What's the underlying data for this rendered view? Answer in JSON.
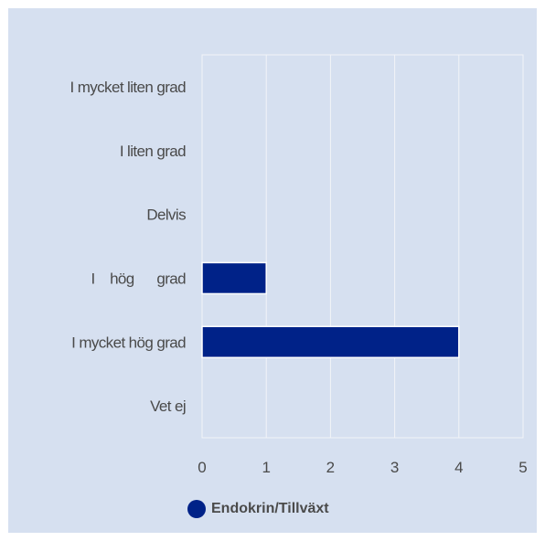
{
  "chart_data": {
    "type": "bar",
    "orientation": "horizontal",
    "categories": [
      "I mycket liten grad",
      "I liten grad",
      "Delvis",
      "I    hög      grad",
      "I mycket hög grad",
      "Vet ej"
    ],
    "series": [
      {
        "name": "Endokrin/Tillväxt",
        "values": [
          0,
          0,
          0,
          1,
          4,
          0
        ]
      }
    ],
    "xlim": [
      0,
      5
    ],
    "xticks": [
      0,
      1,
      2,
      3,
      4,
      5
    ],
    "tick_labels": [
      "0",
      "1",
      "2",
      "3",
      "4",
      "5"
    ],
    "grid": true,
    "legend_position": "bottom",
    "colors": {
      "series": "#002288",
      "background": "#d6e0f0",
      "plot_area": "#d6e0f0",
      "grid": "#f2f4f8"
    }
  }
}
